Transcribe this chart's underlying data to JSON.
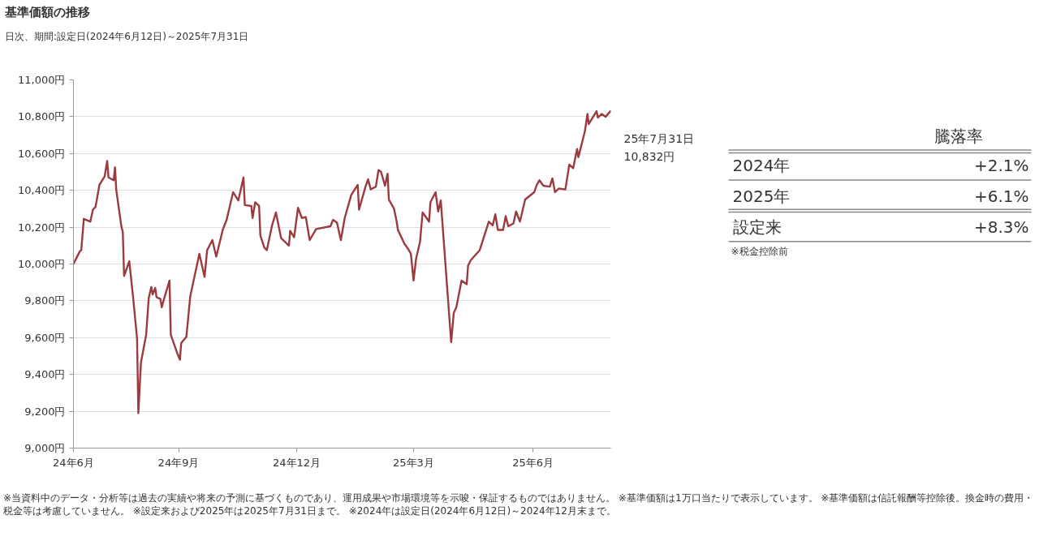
{
  "chart_data": [
    {
      "type": "line",
      "title": "基準価額の推移",
      "subtitle": "日次、期間:設定日(2024年6月12日)～2025年7月31日",
      "color": "#9b3a3f",
      "grid": "y",
      "x": [
        "2024-06-12",
        "2024-06-17",
        "2024-06-18",
        "2024-06-20",
        "2024-06-25",
        "2024-06-27",
        "2024-06-29",
        "2024-07-02",
        "2024-07-06",
        "2024-07-08",
        "2024-07-09",
        "2024-07-13",
        "2024-07-14",
        "2024-07-15",
        "2024-07-19",
        "2024-07-20",
        "2024-07-21",
        "2024-07-25",
        "2024-07-28",
        "2024-07-31",
        "2024-08-01",
        "2024-08-03",
        "2024-08-07",
        "2024-08-09",
        "2024-08-11",
        "2024-08-12",
        "2024-08-14",
        "2024-08-15",
        "2024-08-18",
        "2024-08-19",
        "2024-08-21",
        "2024-08-25",
        "2024-08-26",
        "2024-08-31",
        "2024-09-02",
        "2024-09-03",
        "2024-09-07",
        "2024-09-10",
        "2024-09-17",
        "2024-09-21",
        "2024-09-23",
        "2024-09-27",
        "2024-09-30",
        "2024-10-05",
        "2024-10-08",
        "2024-10-13",
        "2024-10-17",
        "2024-10-21",
        "2024-10-22",
        "2024-10-27",
        "2024-10-28",
        "2024-10-30",
        "2024-11-02",
        "2024-11-03",
        "2024-11-06",
        "2024-11-08",
        "2024-11-12",
        "2024-11-15",
        "2024-11-19",
        "2024-11-25",
        "2024-11-26",
        "2024-11-29",
        "2024-12-02",
        "2024-12-05",
        "2024-12-08",
        "2024-12-11",
        "2024-12-16",
        "2024-12-27",
        "2024-12-29",
        "2025-01-01",
        "2025-01-04",
        "2025-01-07",
        "2025-01-12",
        "2025-01-17",
        "2025-01-18",
        "2025-01-23",
        "2025-01-25",
        "2025-01-27",
        "2025-01-31",
        "2025-02-02",
        "2025-02-04",
        "2025-02-07",
        "2025-02-09",
        "2025-02-10",
        "2025-02-14",
        "2025-02-16",
        "2025-02-17",
        "2025-02-20",
        "2025-02-22",
        "2025-02-25",
        "2025-02-27",
        "2025-03-01",
        "2025-03-03",
        "2025-03-06",
        "2025-03-08",
        "2025-03-13",
        "2025-03-14",
        "2025-03-18",
        "2025-03-20",
        "2025-03-22",
        "2025-03-30",
        "2025-04-01",
        "2025-04-03",
        "2025-04-07",
        "2025-04-11",
        "2025-04-12",
        "2025-04-14",
        "2025-04-21",
        "2025-04-28",
        "2025-05-01",
        "2025-05-03",
        "2025-05-05",
        "2025-05-09",
        "2025-05-11",
        "2025-05-13",
        "2025-05-17",
        "2025-05-19",
        "2025-05-22",
        "2025-05-26",
        "2025-06-02",
        "2025-06-04",
        "2025-06-06",
        "2025-06-09",
        "2025-06-14",
        "2025-06-16",
        "2025-06-18",
        "2025-06-21",
        "2025-06-26",
        "2025-06-29",
        "2025-07-02",
        "2025-07-05",
        "2025-07-06",
        "2025-07-11",
        "2025-07-13",
        "2025-07-14",
        "2025-07-20",
        "2025-07-21",
        "2025-07-24",
        "2025-07-27",
        "2025-07-31"
      ],
      "values": [
        10000,
        10070,
        10075,
        10245,
        10230,
        10295,
        10310,
        10430,
        10475,
        10560,
        10470,
        10455,
        10525,
        10400,
        10200,
        10175,
        9935,
        10015,
        9815,
        9595,
        9190,
        9465,
        9615,
        9815,
        9875,
        9835,
        9870,
        9820,
        9810,
        9765,
        9815,
        9910,
        9615,
        9515,
        9480,
        9570,
        9605,
        9825,
        10055,
        9930,
        10075,
        10130,
        10040,
        10185,
        10240,
        10390,
        10345,
        10470,
        10320,
        10315,
        10250,
        10335,
        10315,
        10155,
        10090,
        10075,
        10210,
        10280,
        10140,
        10100,
        10180,
        10145,
        10305,
        10250,
        10255,
        10130,
        10190,
        10205,
        10240,
        10225,
        10130,
        10250,
        10375,
        10430,
        10295,
        10420,
        10460,
        10405,
        10420,
        10510,
        10500,
        10425,
        10490,
        10350,
        10300,
        10230,
        10185,
        10140,
        10110,
        10080,
        10055,
        9910,
        10030,
        10120,
        10280,
        10230,
        10335,
        10390,
        10285,
        10345,
        9575,
        9735,
        9765,
        9910,
        9890,
        9990,
        10020,
        10075,
        10230,
        10210,
        10270,
        10185,
        10185,
        10260,
        10205,
        10220,
        10285,
        10230,
        10350,
        10390,
        10430,
        10455,
        10425,
        10420,
        10465,
        10390,
        10410,
        10405,
        10540,
        10520,
        10625,
        10580,
        10720,
        10815,
        10760,
        10830,
        10795,
        10815,
        10800,
        10832
      ],
      "xlim": [
        "2024-06-12",
        "2025-07-31"
      ],
      "xticks": [
        {
          "value": "2024-06-12",
          "label": "24年6月"
        },
        {
          "value": "2024-09-01",
          "label": "24年9月"
        },
        {
          "value": "2024-12-01",
          "label": "24年12月"
        },
        {
          "value": "2025-03-01",
          "label": "25年3月"
        },
        {
          "value": "2025-06-01",
          "label": "25年6月"
        }
      ],
      "ylim": [
        9000,
        11000
      ],
      "yticks": [
        {
          "value": 9000,
          "label": "9,000円"
        },
        {
          "value": 9200,
          "label": "9,200円"
        },
        {
          "value": 9400,
          "label": "9,400円"
        },
        {
          "value": 9600,
          "label": "9,600円"
        },
        {
          "value": 9800,
          "label": "9,800円"
        },
        {
          "value": 10000,
          "label": "10,000円"
        },
        {
          "value": 10200,
          "label": "10,200円"
        },
        {
          "value": 10400,
          "label": "10,400円"
        },
        {
          "value": 10600,
          "label": "10,600円"
        },
        {
          "value": 10800,
          "label": "10,800円"
        },
        {
          "value": 11000,
          "label": "11,000円"
        }
      ],
      "annotations": [
        {
          "text": "25年7月31日\n10,832円",
          "x": "2025-07-31",
          "y": 10832
        },
        "※当資料中のデータ・分析等は過去の実績や将来の予測に基づくものであり、運用成果や市場環境等を示唆・保証するものではありません。 ※基準価額は1万口当たりで表示しています。 ※基準価額は信託報酬等控除後。換金時の費用・税金等は考慮していません。 ※設定来および2025年は2025年7月31日まで。 ※2024年は設定日(2024年6月12日)～2024年12月末まで。"
      ]
    },
    {
      "type": "other",
      "title": "騰落率",
      "categories": [
        "2024年",
        "2025年",
        "設定来"
      ],
      "value_labels": [
        "+2.1%",
        "+6.1%",
        "+8.3%"
      ],
      "annotations": [
        "※税金控除前"
      ]
    }
  ]
}
